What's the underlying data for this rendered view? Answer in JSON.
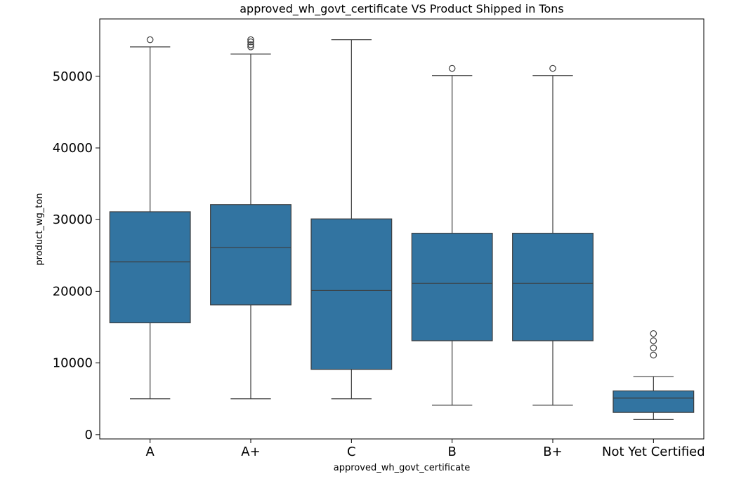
{
  "colors": {
    "box_fill": "#3274a1",
    "line": "#3d3d3d",
    "frame": "#000000",
    "background": "#ffffff"
  },
  "chart_data": {
    "type": "boxplot",
    "title": "approved_wh_govt_certificate VS Product Shipped in Tons",
    "xlabel": "approved_wh_govt_certificate",
    "ylabel": "product_wg_ton",
    "categories": [
      "A",
      "A+",
      "C",
      "B",
      "B+",
      "Not Yet Certified"
    ],
    "ylim": [
      -600,
      58000
    ],
    "yticks": [
      0,
      10000,
      20000,
      30000,
      40000,
      50000
    ],
    "ytick_labels": [
      "0",
      "10000",
      "20000",
      "30000",
      "40000",
      "50000"
    ],
    "grid": false,
    "legend": "none",
    "boxes": [
      {
        "category": "A",
        "whisker_low": 5000,
        "q1": 15600,
        "median": 24100,
        "q3": 31100,
        "whisker_high": 54100,
        "outliers": [
          55100
        ]
      },
      {
        "category": "A+",
        "whisker_low": 5000,
        "q1": 18100,
        "median": 26100,
        "q3": 32100,
        "whisker_high": 53100,
        "outliers": [
          54100,
          54400,
          54800,
          55100
        ]
      },
      {
        "category": "C",
        "whisker_low": 5000,
        "q1": 9100,
        "median": 20100,
        "q3": 30100,
        "whisker_high": 55100,
        "outliers": []
      },
      {
        "category": "B",
        "whisker_low": 4100,
        "q1": 13100,
        "median": 21100,
        "q3": 28100,
        "whisker_high": 50100,
        "outliers": [
          51100
        ]
      },
      {
        "category": "B+",
        "whisker_low": 4100,
        "q1": 13100,
        "median": 21100,
        "q3": 28100,
        "whisker_high": 50100,
        "outliers": [
          51100
        ]
      },
      {
        "category": "Not Yet Certified",
        "whisker_low": 2100,
        "q1": 3100,
        "median": 5100,
        "q3": 6100,
        "whisker_high": 8100,
        "outliers": [
          11100,
          12100,
          13100,
          14100
        ]
      }
    ]
  }
}
